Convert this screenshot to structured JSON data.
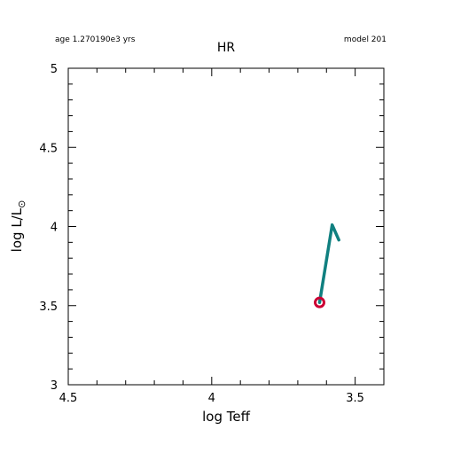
{
  "header": {
    "age_text": "age 1.270190e3 yrs",
    "model_text": "model 201"
  },
  "chart_data": {
    "type": "line",
    "title": "HR",
    "xlabel": "log Teff",
    "ylabel_main": "log L/L",
    "ylabel_sub": "⊙",
    "xlim": [
      4.5,
      3.4
    ],
    "ylim": [
      3,
      5
    ],
    "x_reversed": true,
    "x_major_ticks": [
      4.5,
      4,
      3.5
    ],
    "x_tick_labels": [
      "4.5",
      "4",
      "3.5"
    ],
    "x_minor_step": 0.1,
    "y_major_ticks": [
      3,
      3.5,
      4,
      4.5,
      5
    ],
    "y_tick_labels": [
      "3",
      "3.5",
      "4",
      "4.5",
      "5"
    ],
    "y_minor_step": 0.1,
    "grid": false,
    "series": [
      {
        "color": "#108080",
        "x": [
          3.624,
          3.58,
          3.557
        ],
        "y": [
          3.52,
          4.01,
          3.915
        ]
      }
    ],
    "current_point": {
      "x": 3.624,
      "y": 3.52,
      "color": "#cc0033"
    }
  }
}
